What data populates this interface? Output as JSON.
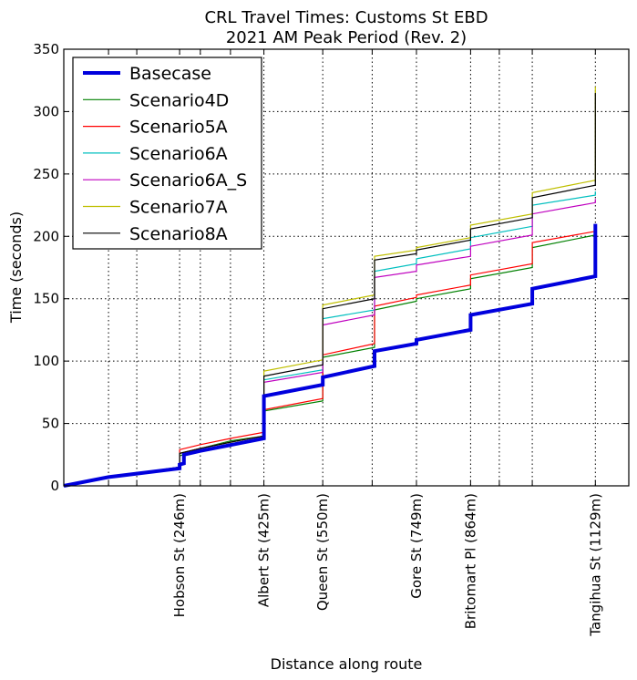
{
  "chart_data": {
    "type": "line",
    "title": "CRL Travel Times: Customs St EBD",
    "subtitle": "2021 AM Peak Period (Rev. 2)",
    "xlabel": "Distance along route",
    "ylabel": "Time (seconds)",
    "xlim": [
      0,
      1200
    ],
    "ylim": [
      0,
      350
    ],
    "y_ticks": [
      0,
      50,
      100,
      150,
      200,
      250,
      300,
      350
    ],
    "grid": true,
    "grid_style": "dotted",
    "legend_position": "top-left",
    "x_grid_lines": [
      95,
      155,
      246,
      290,
      354,
      425,
      550,
      655,
      749,
      864,
      925,
      995,
      1129
    ],
    "stops": [
      {
        "label": "Hobson St (246m)",
        "x": 246
      },
      {
        "label": "Albert St (425m)",
        "x": 425
      },
      {
        "label": "Queen St (550m)",
        "x": 550
      },
      {
        "label": "Gore St (749m)",
        "x": 749
      },
      {
        "label": "Britomart Pl (864m)",
        "x": 864
      },
      {
        "label": "Tangihua St (1129m)",
        "x": 1129
      }
    ],
    "series": [
      {
        "name": "Basecase",
        "color": "#0000dd",
        "width": 4,
        "points": [
          [
            0,
            0
          ],
          [
            95,
            7
          ],
          [
            246,
            14
          ],
          [
            246,
            17
          ],
          [
            255,
            18
          ],
          [
            255,
            25
          ],
          [
            290,
            28
          ],
          [
            425,
            38
          ],
          [
            425,
            72
          ],
          [
            550,
            81
          ],
          [
            550,
            87
          ],
          [
            660,
            96
          ],
          [
            660,
            108
          ],
          [
            749,
            114
          ],
          [
            749,
            117
          ],
          [
            864,
            125
          ],
          [
            864,
            137
          ],
          [
            995,
            146
          ],
          [
            995,
            158
          ],
          [
            1129,
            168
          ],
          [
            1129,
            210
          ]
        ]
      },
      {
        "name": "Scenario4D",
        "color": "#008000",
        "width": 1.2,
        "points": [
          [
            0,
            0
          ],
          [
            95,
            7
          ],
          [
            246,
            15
          ],
          [
            246,
            24
          ],
          [
            290,
            30
          ],
          [
            354,
            36
          ],
          [
            425,
            40
          ],
          [
            425,
            60
          ],
          [
            550,
            68
          ],
          [
            550,
            103
          ],
          [
            660,
            111
          ],
          [
            660,
            141
          ],
          [
            749,
            148
          ],
          [
            749,
            150
          ],
          [
            864,
            158
          ],
          [
            864,
            166
          ],
          [
            995,
            175
          ],
          [
            995,
            191
          ],
          [
            1129,
            201
          ],
          [
            1129,
            205
          ]
        ]
      },
      {
        "name": "Scenario5A",
        "color": "#ff0000",
        "width": 1.2,
        "points": [
          [
            0,
            0
          ],
          [
            95,
            7
          ],
          [
            246,
            15
          ],
          [
            246,
            29
          ],
          [
            290,
            33
          ],
          [
            354,
            38
          ],
          [
            425,
            43
          ],
          [
            425,
            61
          ],
          [
            550,
            70
          ],
          [
            550,
            105
          ],
          [
            660,
            114
          ],
          [
            660,
            144
          ],
          [
            749,
            151
          ],
          [
            749,
            153
          ],
          [
            864,
            161
          ],
          [
            864,
            169
          ],
          [
            995,
            178
          ],
          [
            995,
            195
          ],
          [
            1129,
            204
          ],
          [
            1129,
            207
          ]
        ]
      },
      {
        "name": "Scenario6A",
        "color": "#00bfbf",
        "width": 1.2,
        "points": [
          [
            0,
            0
          ],
          [
            95,
            7
          ],
          [
            246,
            15
          ],
          [
            246,
            26
          ],
          [
            290,
            30
          ],
          [
            354,
            35
          ],
          [
            425,
            40
          ],
          [
            425,
            85
          ],
          [
            550,
            93
          ],
          [
            550,
            134
          ],
          [
            660,
            141
          ],
          [
            660,
            172
          ],
          [
            749,
            178
          ],
          [
            749,
            182
          ],
          [
            864,
            190
          ],
          [
            864,
            199
          ],
          [
            995,
            208
          ],
          [
            995,
            225
          ],
          [
            1129,
            233
          ],
          [
            1129,
            236
          ]
        ]
      },
      {
        "name": "Scenario6A_S",
        "color": "#bf00bf",
        "width": 1.2,
        "points": [
          [
            0,
            0
          ],
          [
            95,
            7
          ],
          [
            246,
            15
          ],
          [
            246,
            26
          ],
          [
            290,
            30
          ],
          [
            354,
            35
          ],
          [
            425,
            40
          ],
          [
            425,
            83
          ],
          [
            550,
            91
          ],
          [
            550,
            129
          ],
          [
            660,
            137
          ],
          [
            660,
            167
          ],
          [
            749,
            172
          ],
          [
            749,
            177
          ],
          [
            864,
            184
          ],
          [
            864,
            192
          ],
          [
            995,
            201
          ],
          [
            995,
            218
          ],
          [
            1129,
            227
          ],
          [
            1129,
            230
          ]
        ]
      },
      {
        "name": "Scenario7A",
        "color": "#bfbf00",
        "width": 1.2,
        "points": [
          [
            0,
            0
          ],
          [
            95,
            7
          ],
          [
            246,
            15
          ],
          [
            246,
            26
          ],
          [
            290,
            30
          ],
          [
            354,
            35
          ],
          [
            425,
            40
          ],
          [
            425,
            92
          ],
          [
            550,
            101
          ],
          [
            550,
            145
          ],
          [
            660,
            153
          ],
          [
            660,
            184
          ],
          [
            749,
            189
          ],
          [
            749,
            191
          ],
          [
            864,
            199
          ],
          [
            864,
            209
          ],
          [
            995,
            218
          ],
          [
            995,
            235
          ],
          [
            1129,
            245
          ],
          [
            1129,
            320
          ]
        ]
      },
      {
        "name": "Scenario8A",
        "color": "#000000",
        "width": 1.2,
        "points": [
          [
            0,
            0
          ],
          [
            95,
            7
          ],
          [
            246,
            15
          ],
          [
            246,
            26
          ],
          [
            290,
            30
          ],
          [
            354,
            35
          ],
          [
            425,
            40
          ],
          [
            425,
            88
          ],
          [
            550,
            97
          ],
          [
            550,
            142
          ],
          [
            660,
            150
          ],
          [
            660,
            181
          ],
          [
            749,
            186
          ],
          [
            749,
            189
          ],
          [
            864,
            197
          ],
          [
            864,
            206
          ],
          [
            995,
            215
          ],
          [
            995,
            231
          ],
          [
            1129,
            241
          ],
          [
            1129,
            315
          ]
        ]
      }
    ]
  }
}
